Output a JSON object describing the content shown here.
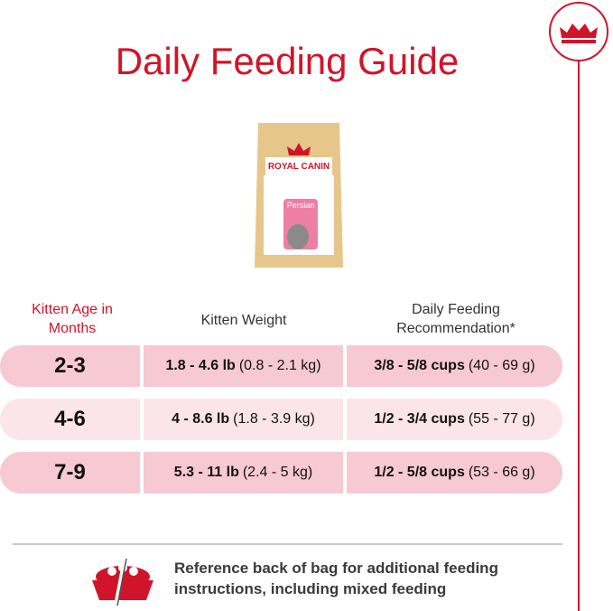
{
  "title": "Daily Feeding Guide",
  "product": {
    "brand": "ROYAL CANIN",
    "name": "Persian"
  },
  "table": {
    "headers": [
      "Kitten Age in Months",
      "Kitten Weight",
      "Daily Feeding Recommendation*"
    ],
    "rows": [
      [
        "2-3",
        "1.8 - 4.6 lb",
        "(0.8 - 2.1 kg)",
        "3/8 - 5/8 cups",
        "(40 - 69 g)"
      ],
      [
        "4-6",
        "4 - 8.6 lb",
        "(1.8 - 3.9 kg)",
        "1/2 - 3/4 cups",
        "(55 - 77 g)"
      ],
      [
        "7-9",
        "5.3 - 11 lb",
        "(2.4 - 5 kg)",
        "1/2 - 5/8 cups",
        "(53 - 66 g)"
      ]
    ]
  },
  "footer": "Reference back of bag for additional feeding instructions, including mixed feeding"
}
